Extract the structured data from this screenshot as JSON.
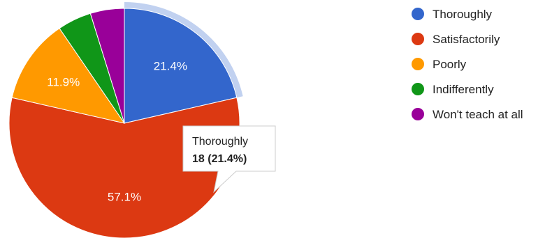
{
  "chart_data": {
    "type": "pie",
    "title": "",
    "start_angle_deg": 90,
    "direction": "clockwise",
    "legend_position": "right",
    "slices": [
      {
        "name": "Thoroughly",
        "value": 18,
        "percent_label": "21.4%",
        "color": "#3366cc"
      },
      {
        "name": "Satisfactorily",
        "value": 48,
        "percent_label": "57.1%",
        "color": "#dc3912"
      },
      {
        "name": "Poorly",
        "value": 10,
        "percent_label": "11.9%",
        "color": "#ff9900"
      },
      {
        "name": "Indifferently",
        "value": 4,
        "percent_label": "",
        "color": "#109618"
      },
      {
        "name": "Won't teach at all",
        "value": 4,
        "percent_label": "",
        "color": "#990099"
      }
    ],
    "highlighted_index": 0,
    "tooltip": {
      "title": "Thoroughly",
      "value_text": "18 (21.4%)"
    }
  }
}
